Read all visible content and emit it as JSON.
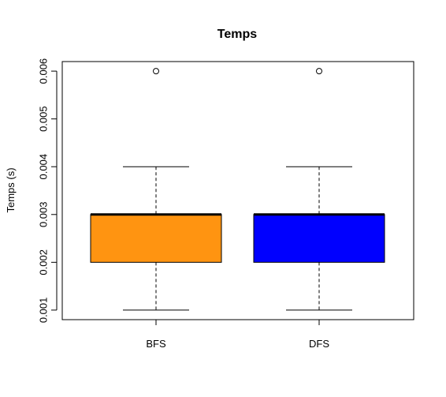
{
  "chart_data": {
    "type": "boxplot",
    "title": "Temps",
    "xlabel": "",
    "ylabel": "Temps (s)",
    "ylim": [
      0.0008,
      0.0062
    ],
    "yticks": [
      "0.001",
      "0.002",
      "0.003",
      "0.004",
      "0.005",
      "0.006"
    ],
    "categories": [
      "BFS",
      "DFS"
    ],
    "series": [
      {
        "category": "BFS",
        "color": "#FF9411",
        "whisker_low": 0.001,
        "q1": 0.002,
        "median": 0.003,
        "q3": 0.003,
        "whisker_high": 0.004,
        "outliers": [
          0.006
        ]
      },
      {
        "category": "DFS",
        "color": "#0000FF",
        "whisker_low": 0.001,
        "q1": 0.002,
        "median": 0.003,
        "q3": 0.003,
        "whisker_high": 0.004,
        "outliers": [
          0.006
        ]
      }
    ],
    "grid": false,
    "legend": "none"
  }
}
